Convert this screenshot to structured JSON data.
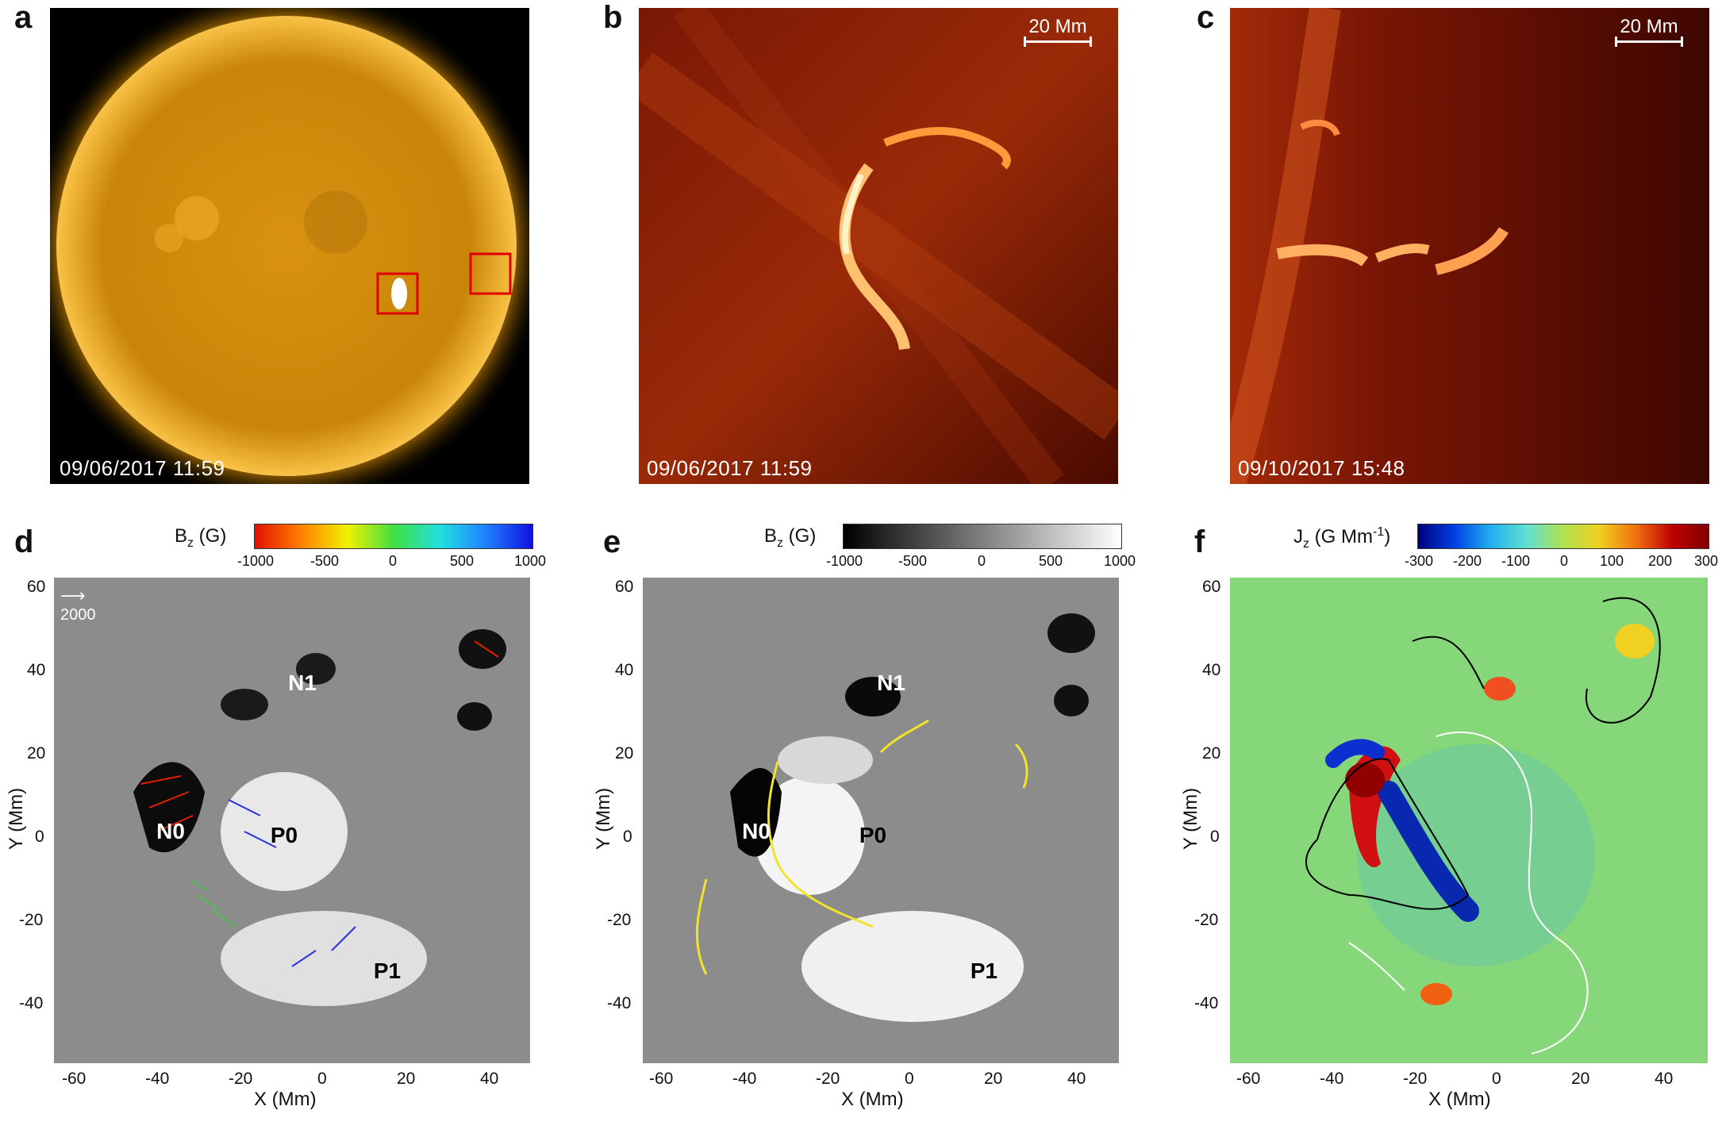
{
  "panels_top": [
    {
      "id": "a",
      "timestamp": "09/06/2017 11:59",
      "scalebar": ""
    },
    {
      "id": "b",
      "timestamp": "09/06/2017 11:59",
      "scalebar": "20 Mm"
    },
    {
      "id": "c",
      "timestamp": "09/10/2017 15:48",
      "scalebar": "20 Mm"
    }
  ],
  "panels_bottom": [
    {
      "id": "d",
      "cbar_title": "B",
      "cbar_sub": "z",
      "cbar_unit": " (G)",
      "cbar_ticks": [
        "-1000",
        "-500",
        "0",
        "500",
        "1000"
      ],
      "ref_arrow": "2000",
      "regions": [
        "N1",
        "N0",
        "P0",
        "P1"
      ]
    },
    {
      "id": "e",
      "cbar_title": "B",
      "cbar_sub": "z",
      "cbar_unit": " (G)",
      "cbar_ticks": [
        "-1000",
        "-500",
        "0",
        "500",
        "1000"
      ],
      "regions": [
        "N1",
        "N0",
        "P0",
        "P1"
      ]
    },
    {
      "id": "f",
      "cbar_title": "J",
      "cbar_sub": "z",
      "cbar_unit": " (G Mm",
      "cbar_sup": "-1",
      "cbar_unit_end": ")",
      "cbar_ticks": [
        "-300",
        "-200",
        "-100",
        "0",
        "100",
        "200",
        "300"
      ]
    }
  ],
  "axes": {
    "xlabel": "X (Mm)",
    "ylabel": "Y (Mm)",
    "xticks": [
      "-60",
      "-40",
      "-20",
      "0",
      "20",
      "40"
    ],
    "yticks": [
      "60",
      "40",
      "20",
      "0",
      "-20",
      "-40"
    ]
  },
  "colors": {
    "sun": "#e8a21a",
    "euv": "#c43a0d",
    "box": "#e00000",
    "pil": "#f2e32a"
  }
}
